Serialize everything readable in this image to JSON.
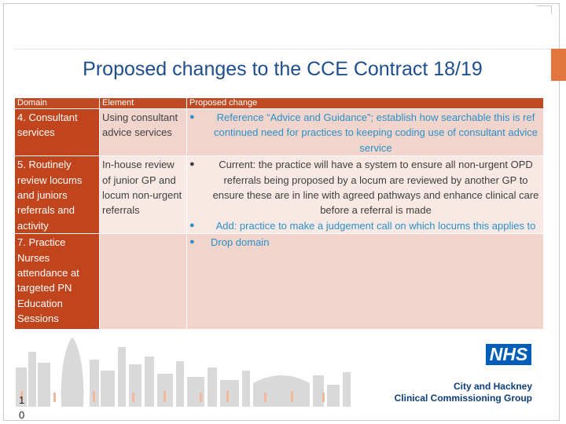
{
  "title": "Proposed changes to the CCE Contract 18/19",
  "table": {
    "headers": {
      "domain": "Domain",
      "element": "Element",
      "change": "Proposed change"
    },
    "rows": [
      {
        "domain": "4. Consultant services",
        "element": "Using consultant advice services",
        "bullets": [
          "Reference “Advice and Guidance”; establish how searchable this is ref continued need for practices to keeping coding use of consultant advice service"
        ]
      },
      {
        "domain": "5. Routinely review locums and juniors referrals and activity",
        "element": "In-house review of junior GP and locum non-urgent referrals",
        "bullets": [
          "Current: the practice will have a system to ensure all non-urgent OPD referrals being proposed by a locum are reviewed by another GP to ensure these are in line with agreed pathways and enhance clinical care before a referral is made",
          "Add: practice to make a judgement call on which locums this applies to"
        ]
      },
      {
        "domain": "7. Practice Nurses attendance at targeted PN Education Sessions",
        "element": "",
        "bullets": [
          "Drop domain"
        ]
      }
    ]
  },
  "footer": {
    "logo": "NHS",
    "org_line1": "City and Hackney",
    "org_line2": "Clinical Commissioning Group",
    "slide_number": "1 0"
  },
  "colors": {
    "accent_orange": "#e2753e",
    "domain_red": "#c0441c",
    "title_blue": "#1f4e8c",
    "nhs_blue": "#005eb8",
    "change_text_blue": "#2a90c8"
  }
}
